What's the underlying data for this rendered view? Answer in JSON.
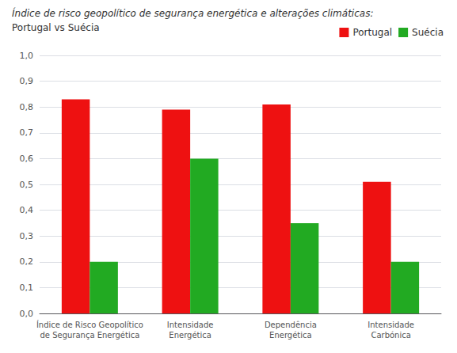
{
  "chart_data": {
    "type": "bar",
    "title": "Índice de risco geopolítico de segurança energética e alterações climáticas:",
    "subtitle": "Portugal vs Suécia",
    "categories": [
      "Índice de Risco Geopolítico\nde Segurança Energética",
      "Intensidade\nEnergética",
      "Dependência\nEnergética",
      "Intensidade\nCarbónica"
    ],
    "series": [
      {
        "name": "Portugal",
        "color": "#ee1111",
        "values": [
          0.83,
          0.79,
          0.81,
          0.51
        ]
      },
      {
        "name": "Suécia",
        "color": "#22aa22",
        "values": [
          0.2,
          0.6,
          0.35,
          0.2
        ]
      }
    ],
    "ylim": [
      0.0,
      1.0
    ],
    "yticks": [
      {
        "value": 0.0,
        "label": "0,0"
      },
      {
        "value": 0.1,
        "label": "0,1"
      },
      {
        "value": 0.2,
        "label": "0,2"
      },
      {
        "value": 0.3,
        "label": "0,3"
      },
      {
        "value": 0.4,
        "label": "0,4"
      },
      {
        "value": 0.5,
        "label": "0,5"
      },
      {
        "value": 0.6,
        "label": "0,6"
      },
      {
        "value": 0.7,
        "label": "0,7"
      },
      {
        "value": 0.8,
        "label": "0,8"
      },
      {
        "value": 0.9,
        "label": "0,9"
      },
      {
        "value": 1.0,
        "label": "1,0"
      }
    ],
    "grid": true,
    "legend": "upper right"
  }
}
